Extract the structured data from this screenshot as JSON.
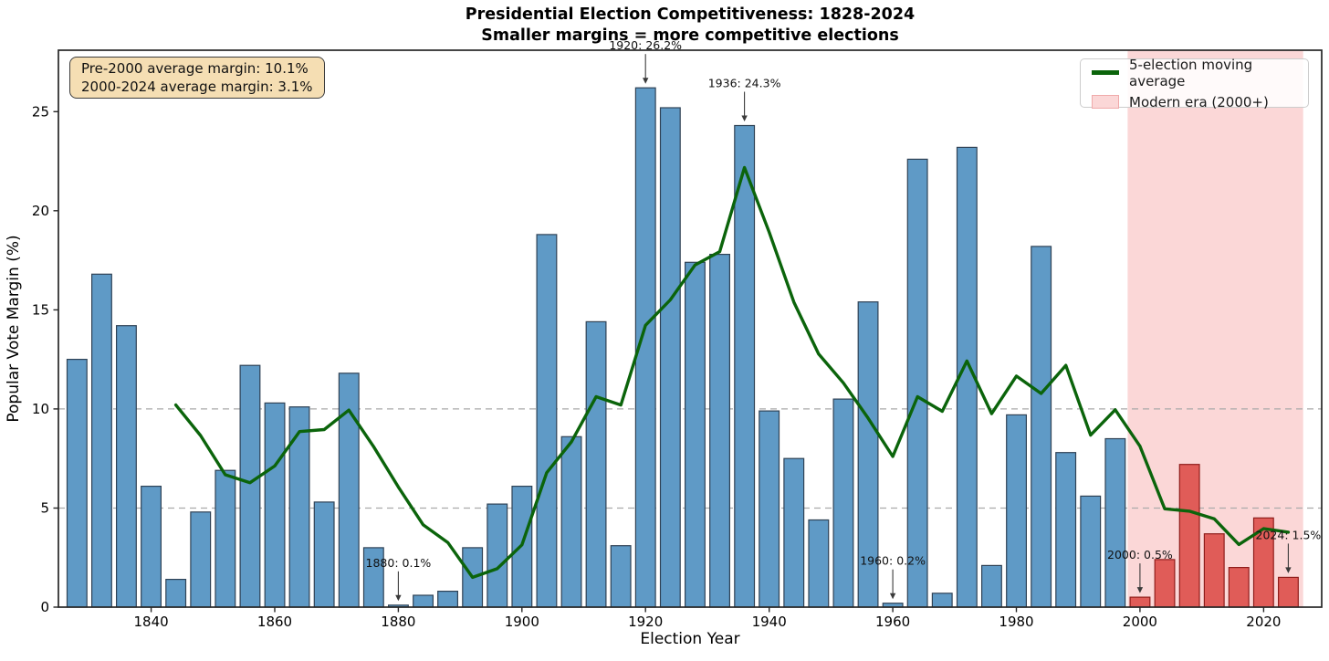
{
  "title": {
    "line1": "Presidential Election Competitiveness: 1828-2024",
    "line2": "Smaller margins = more competitive elections"
  },
  "info_box": {
    "line1": "Pre-2000 average margin: 10.1%",
    "line2": "2000-2024 average margin: 3.1%"
  },
  "legend": {
    "moving_average_label": "5-election moving average",
    "modern_era_label": "Modern era (2000+)"
  },
  "axes": {
    "x_label": "Election Year",
    "y_label": "Popular Vote Margin (%)",
    "x_ticks": [
      1840,
      1860,
      1880,
      1900,
      1920,
      1940,
      1960,
      1980,
      2000,
      2020
    ],
    "y_ticks": [
      0,
      5,
      10,
      15,
      20,
      25
    ],
    "x_range": [
      1825,
      2029.4
    ],
    "y_range": [
      0,
      28.1
    ],
    "reference_lines_y": [
      5,
      10
    ]
  },
  "chart_data": {
    "type": "bar",
    "title": "Presidential Election Competitiveness: 1828-2024",
    "xlabel": "Election Year",
    "ylabel": "Popular Vote Margin (%)",
    "ylim": [
      0,
      28.1
    ],
    "x": [
      1828,
      1832,
      1836,
      1840,
      1844,
      1848,
      1852,
      1856,
      1860,
      1864,
      1868,
      1872,
      1876,
      1880,
      1884,
      1888,
      1892,
      1896,
      1900,
      1904,
      1908,
      1912,
      1916,
      1920,
      1924,
      1928,
      1932,
      1936,
      1940,
      1944,
      1948,
      1952,
      1956,
      1960,
      1964,
      1968,
      1972,
      1976,
      1980,
      1984,
      1988,
      1992,
      1996,
      2000,
      2004,
      2008,
      2012,
      2016,
      2020,
      2024
    ],
    "series": [
      {
        "name": "Popular vote margin (%)",
        "type": "bar",
        "values": [
          12.5,
          16.8,
          14.2,
          6.1,
          1.4,
          4.8,
          6.9,
          12.2,
          10.3,
          10.1,
          5.3,
          11.8,
          3.0,
          0.1,
          0.6,
          0.8,
          3.0,
          5.2,
          6.1,
          18.8,
          8.6,
          14.4,
          3.1,
          26.2,
          25.2,
          17.4,
          17.8,
          24.3,
          9.9,
          7.5,
          4.4,
          10.5,
          15.4,
          0.2,
          22.6,
          0.7,
          23.2,
          2.1,
          9.7,
          18.2,
          7.8,
          5.6,
          8.5,
          0.5,
          2.4,
          7.2,
          3.7,
          2.0,
          4.5,
          1.5
        ]
      },
      {
        "name": "5-election moving average",
        "type": "line",
        "x_start": 1844,
        "x_step": 4,
        "values": [
          10.2,
          8.66,
          6.68,
          6.28,
          7.12,
          8.86,
          8.96,
          9.94,
          8.1,
          6.06,
          4.16,
          3.26,
          1.5,
          1.94,
          3.14,
          6.78,
          8.34,
          10.62,
          10.2,
          14.22,
          15.5,
          17.26,
          17.94,
          22.18,
          18.92,
          15.38,
          12.78,
          11.32,
          9.54,
          7.6,
          10.62,
          9.88,
          12.42,
          9.76,
          11.66,
          10.78,
          12.2,
          8.68,
          9.96,
          8.12,
          4.96,
          4.84,
          4.46,
          3.16,
          3.96,
          3.78
        ]
      }
    ],
    "modern_era_span": [
      1998,
      2026.4
    ],
    "modern_era_threshold": 2000,
    "bar_width_years": 3.2,
    "legend_position": "upper right",
    "grid": "dashed horizontal reference lines at 5 and 10 only"
  },
  "annotations": [
    {
      "year": 1880,
      "text": "1880: 0.1%"
    },
    {
      "year": 1920,
      "text": "1920: 26.2%"
    },
    {
      "year": 1936,
      "text": "1936: 24.3%"
    },
    {
      "year": 1960,
      "text": "1960: 0.2%"
    },
    {
      "year": 2000,
      "text": "2000: 0.5%"
    },
    {
      "year": 2024,
      "text": "2024: 1.5%"
    }
  ],
  "colors": {
    "bar_blue": "#5f9ac6",
    "bar_blue_edge": "#2f4255",
    "bar_red": "#e05c58",
    "bar_red_edge": "#8f1d1b",
    "modern_span": "#fbd7d7",
    "ma_line": "#0b640b",
    "grid": "#aaaaaa",
    "spine": "#262626",
    "annotation_text": "#111111",
    "arrow": "#3a3a3a"
  }
}
